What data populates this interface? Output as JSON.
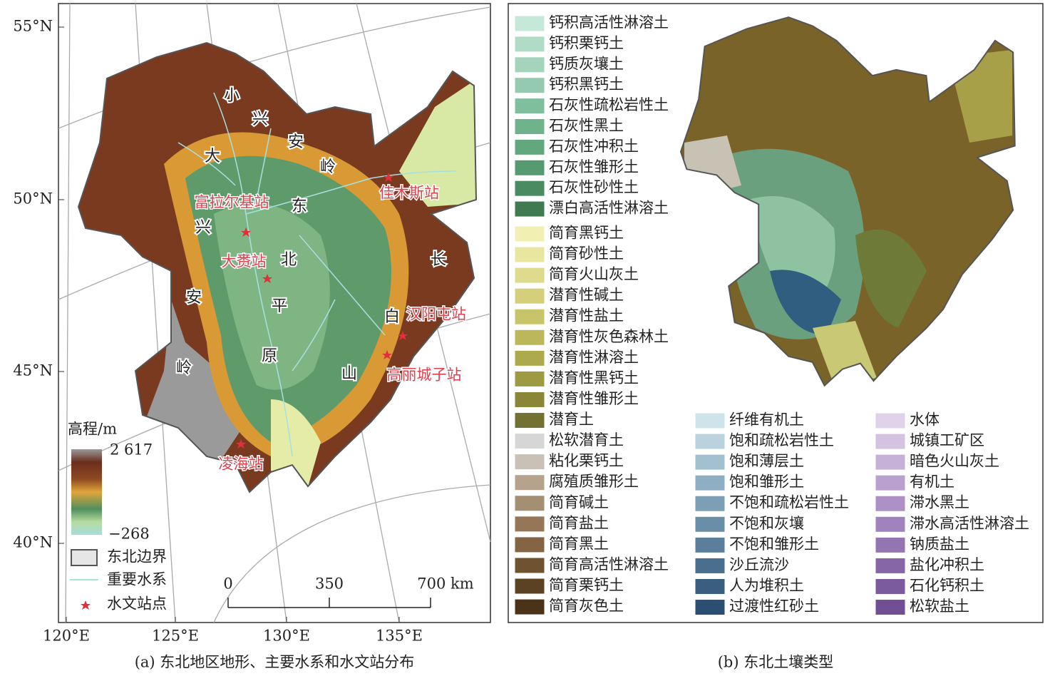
{
  "panel_a": {
    "lat_labels": [
      "55°N",
      "50°N",
      "45°N",
      "40°N"
    ],
    "lon_labels": [
      "120°E",
      "125°E",
      "130°E",
      "135°E"
    ],
    "region_labels": {
      "greater_khingan": [
        "大",
        "兴",
        "安",
        "岭"
      ],
      "lesser_khingan": [
        "小",
        "兴",
        "安",
        "岭"
      ],
      "plain": [
        "东",
        "北",
        "平",
        "原"
      ],
      "changbai": [
        "长",
        "白",
        "山"
      ]
    },
    "stations": [
      "富拉尔基站",
      "佳木斯站",
      "大赉站",
      "汉阳屯站",
      "高丽城子站",
      "凌海站"
    ],
    "elevation_legend": {
      "title": "高程/m",
      "max": "2 617",
      "min": "−268"
    },
    "legend": [
      "东北边界",
      "重要水系",
      "水文站点"
    ],
    "scale_bar": [
      "0",
      "350",
      "700 km"
    ],
    "caption": "(a) 东北地区地形、主要水系和水文站分布"
  },
  "panel_b": {
    "legend": {
      "column_1": [
        {
          "label": "钙积高活性淋溶土",
          "color": "#c5e8d9"
        },
        {
          "label": "钙积栗钙土",
          "color": "#b0dcc6"
        },
        {
          "label": "钙质灰壤土",
          "color": "#a4d4bc"
        },
        {
          "label": "钙积黑钙土",
          "color": "#94cbb0"
        },
        {
          "label": "石灰性疏松岩性土",
          "color": "#80bf9e"
        },
        {
          "label": "石灰性黑土",
          "color": "#6fb38d"
        },
        {
          "label": "石灰性冲积土",
          "color": "#62a77e"
        },
        {
          "label": "石灰性雏形土",
          "color": "#559a70"
        },
        {
          "label": "石灰性砂性土",
          "color": "#4b8b62"
        },
        {
          "label": "漂白高活性淋溶土",
          "color": "#3f7a50"
        },
        {
          "label": "简育黑钙土",
          "color": "#f1efb2"
        },
        {
          "label": "简育砂性土",
          "color": "#e9e69f"
        },
        {
          "label": "简育火山灰土",
          "color": "#dedc8c"
        },
        {
          "label": "潜育性碱土",
          "color": "#d3cf7a"
        },
        {
          "label": "潜育性盐土",
          "color": "#c8c46a"
        },
        {
          "label": "潜育性灰色森林土",
          "color": "#bcb75b"
        },
        {
          "label": "潜育性淋溶土",
          "color": "#ada94d"
        },
        {
          "label": "潜育性黑钙土",
          "color": "#9e9a42"
        },
        {
          "label": "潜育性雏形土",
          "color": "#8a8638"
        },
        {
          "label": "潜育土",
          "color": "#737131"
        },
        {
          "label": "松软潜育土",
          "color": "#d6d6d6"
        },
        {
          "label": "粘化栗钙土",
          "color": "#c9c1b5"
        },
        {
          "label": "腐殖质雏形土",
          "color": "#b5a38e"
        },
        {
          "label": "简育碱土",
          "color": "#a58f73"
        },
        {
          "label": "简育盐土",
          "color": "#957758"
        },
        {
          "label": "简育黑土",
          "color": "#856443"
        },
        {
          "label": "简育高活性淋溶土",
          "color": "#6f5230"
        },
        {
          "label": "简育栗钙土",
          "color": "#5b4222"
        },
        {
          "label": "简育灰色土",
          "color": "#4a3319"
        }
      ],
      "column_2": [
        {
          "label": "纤维有机土",
          "color": "#cfe4ea"
        },
        {
          "label": "饱和疏松岩性土",
          "color": "#b9d2dd"
        },
        {
          "label": "饱和薄层土",
          "color": "#a2c0d0"
        },
        {
          "label": "饱和雏形土",
          "color": "#8eafc3"
        },
        {
          "label": "不饱和疏松岩性土",
          "color": "#7c9fb6"
        },
        {
          "label": "不饱和灰壤",
          "color": "#6a8ea8"
        },
        {
          "label": "不饱和雏形土",
          "color": "#5a7e9b"
        },
        {
          "label": "沙丘流沙",
          "color": "#4a6e8d"
        },
        {
          "label": "人为堆积土",
          "color": "#3a5e80"
        },
        {
          "label": "过渡性红砂土",
          "color": "#2b4f73"
        }
      ],
      "column_3": [
        {
          "label": "水体",
          "color": "#e0d2e8"
        },
        {
          "label": "城镇工矿区",
          "color": "#d4c3e0"
        },
        {
          "label": "暗色火山灰土",
          "color": "#c6b1d8"
        },
        {
          "label": "有机土",
          "color": "#b9a0cf"
        },
        {
          "label": "滞水黑土",
          "color": "#ad91c6"
        },
        {
          "label": "滞水高活性淋溶土",
          "color": "#a083bd"
        },
        {
          "label": "钠质盐土",
          "color": "#9375b2"
        },
        {
          "label": "盐化冲积土",
          "color": "#8666a7"
        },
        {
          "label": "石化钙积土",
          "color": "#7b5a9d"
        },
        {
          "label": "松软盐土",
          "color": "#704f92"
        }
      ]
    },
    "caption": "(b) 东北土壤类型"
  }
}
